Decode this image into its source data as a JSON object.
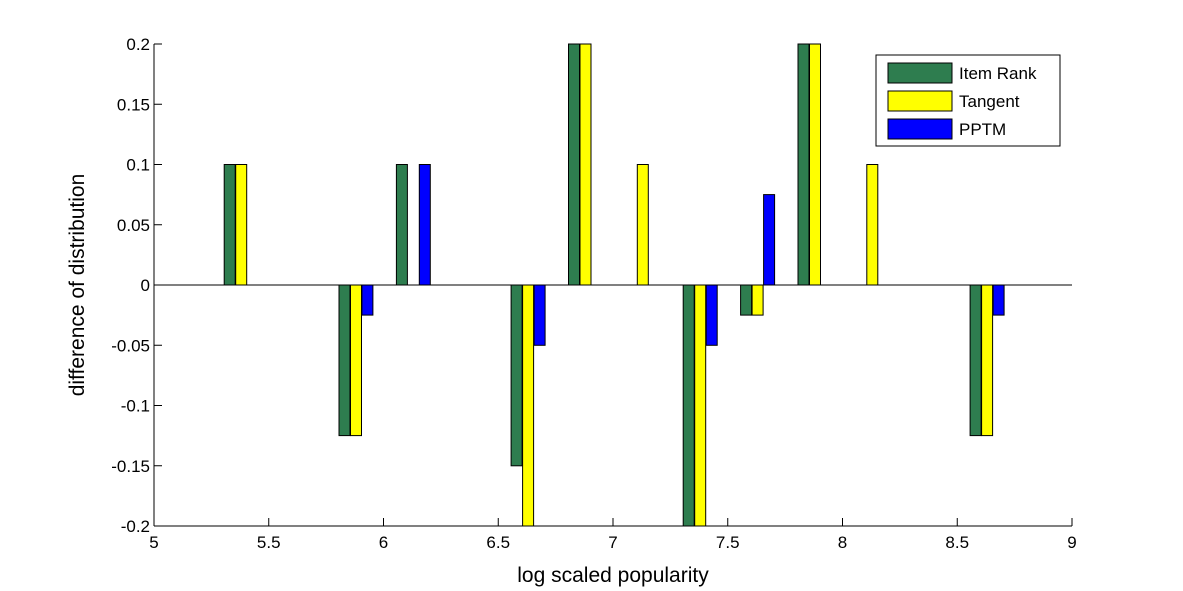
{
  "chart_data": {
    "type": "bar",
    "title": "",
    "xlabel": "log scaled popularity",
    "ylabel": "difference of distribution",
    "xlim": [
      5,
      9
    ],
    "ylim": [
      -0.2,
      0.2
    ],
    "x_ticks": [
      "5",
      "5.5",
      "6",
      "6.5",
      "7",
      "7.5",
      "8",
      "8.5",
      "9"
    ],
    "y_ticks": [
      "-0.2",
      "-0.15",
      "-0.1",
      "-0.05",
      "0",
      "0.05",
      "0.1",
      "0.15",
      "0.2"
    ],
    "legend_position": "top-right",
    "grid": false,
    "series": [
      {
        "name": "Item Rank",
        "color": "#2e7d4f",
        "points": [
          {
            "x": 5.33,
            "y": 0.1
          },
          {
            "x": 5.83,
            "y": -0.125
          },
          {
            "x": 6.08,
            "y": 0.1
          },
          {
            "x": 6.58,
            "y": -0.15
          },
          {
            "x": 6.83,
            "y": 0.2
          },
          {
            "x": 7.33,
            "y": -0.2
          },
          {
            "x": 7.58,
            "y": -0.025
          },
          {
            "x": 7.83,
            "y": 0.2
          },
          {
            "x": 8.58,
            "y": -0.125
          }
        ]
      },
      {
        "name": "Tangent",
        "color": "#ffff00",
        "points": [
          {
            "x": 5.38,
            "y": 0.1
          },
          {
            "x": 5.88,
            "y": -0.125
          },
          {
            "x": 6.63,
            "y": -0.2
          },
          {
            "x": 6.88,
            "y": 0.2
          },
          {
            "x": 7.13,
            "y": 0.1
          },
          {
            "x": 7.38,
            "y": -0.2
          },
          {
            "x": 7.63,
            "y": -0.025
          },
          {
            "x": 7.88,
            "y": 0.2
          },
          {
            "x": 8.13,
            "y": 0.1
          },
          {
            "x": 8.63,
            "y": -0.125
          }
        ]
      },
      {
        "name": "PPTM",
        "color": "#0000ff",
        "points": [
          {
            "x": 5.93,
            "y": -0.025
          },
          {
            "x": 6.18,
            "y": 0.1
          },
          {
            "x": 6.68,
            "y": -0.05
          },
          {
            "x": 7.43,
            "y": -0.05
          },
          {
            "x": 7.68,
            "y": 0.075
          },
          {
            "x": 8.68,
            "y": -0.025
          }
        ]
      }
    ]
  }
}
